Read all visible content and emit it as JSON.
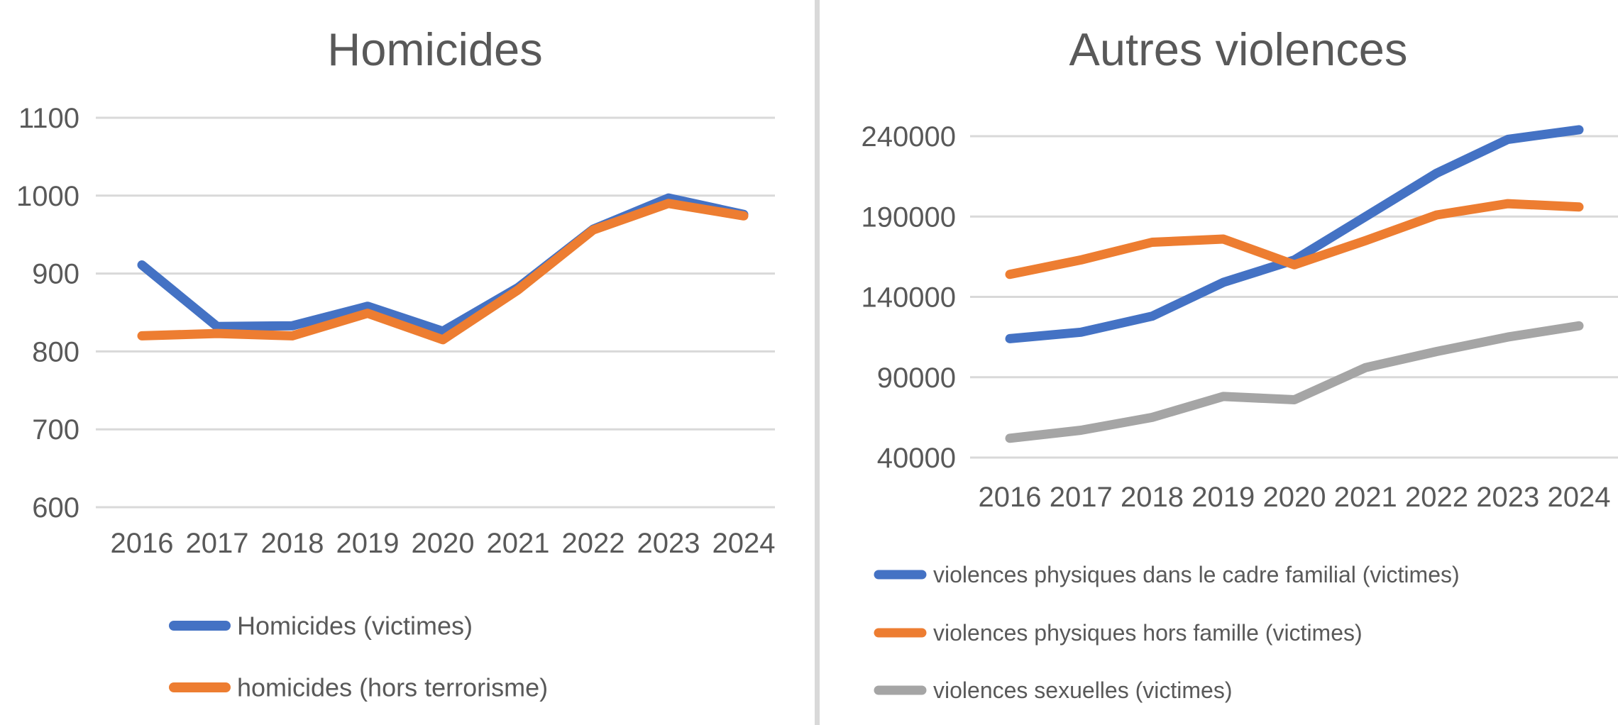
{
  "page": {
    "background": "#FFFFFF"
  },
  "styles": {
    "text_color": "#595959",
    "gridline_color": "#D9D9D9",
    "divider_color": "#D9D9D9",
    "series_blue": "#4472C4",
    "series_orange": "#ED7D31",
    "series_gray": "#A5A5A5"
  },
  "chart_data": [
    {
      "type": "line",
      "title": "Homicides",
      "categories": [
        "2016",
        "2017",
        "2018",
        "2019",
        "2020",
        "2021",
        "2022",
        "2023",
        "2024"
      ],
      "xlabel": "",
      "ylabel": "",
      "ylim": [
        600,
        1100
      ],
      "yticks": [
        600,
        700,
        800,
        900,
        1000,
        1100
      ],
      "grid": true,
      "legend_position": "bottom",
      "series": [
        {
          "name": "Homicides (victimes)",
          "color": "#4472C4",
          "values": [
            911,
            832,
            833,
            858,
            826,
            882,
            957,
            997,
            976
          ]
        },
        {
          "name": "homicides (hors terrorisme)",
          "color": "#ED7D31",
          "values": [
            820,
            823,
            820,
            849,
            815,
            879,
            956,
            990,
            974
          ]
        }
      ]
    },
    {
      "type": "line",
      "title": "Autres violences",
      "categories": [
        "2016",
        "2017",
        "2018",
        "2019",
        "2020",
        "2021",
        "2022",
        "2023",
        "2024"
      ],
      "xlabel": "",
      "ylabel": "",
      "ylim": [
        40000,
        240000
      ],
      "yticks": [
        40000,
        90000,
        140000,
        190000,
        240000
      ],
      "grid": true,
      "legend_position": "bottom",
      "series": [
        {
          "name": "violences physiques dans le cadre familial (victimes)",
          "color": "#4472C4",
          "values": [
            114000,
            118000,
            128000,
            149000,
            163000,
            190000,
            217000,
            238000,
            244000
          ]
        },
        {
          "name": "violences physiques hors famille (victimes)",
          "color": "#ED7D31",
          "values": [
            154000,
            163000,
            174000,
            176000,
            160000,
            175000,
            191000,
            198000,
            196000
          ]
        },
        {
          "name": "violences sexuelles (victimes)",
          "color": "#A5A5A5",
          "values": [
            52000,
            57000,
            65000,
            78000,
            76000,
            96000,
            106000,
            115000,
            122000
          ]
        }
      ]
    }
  ]
}
